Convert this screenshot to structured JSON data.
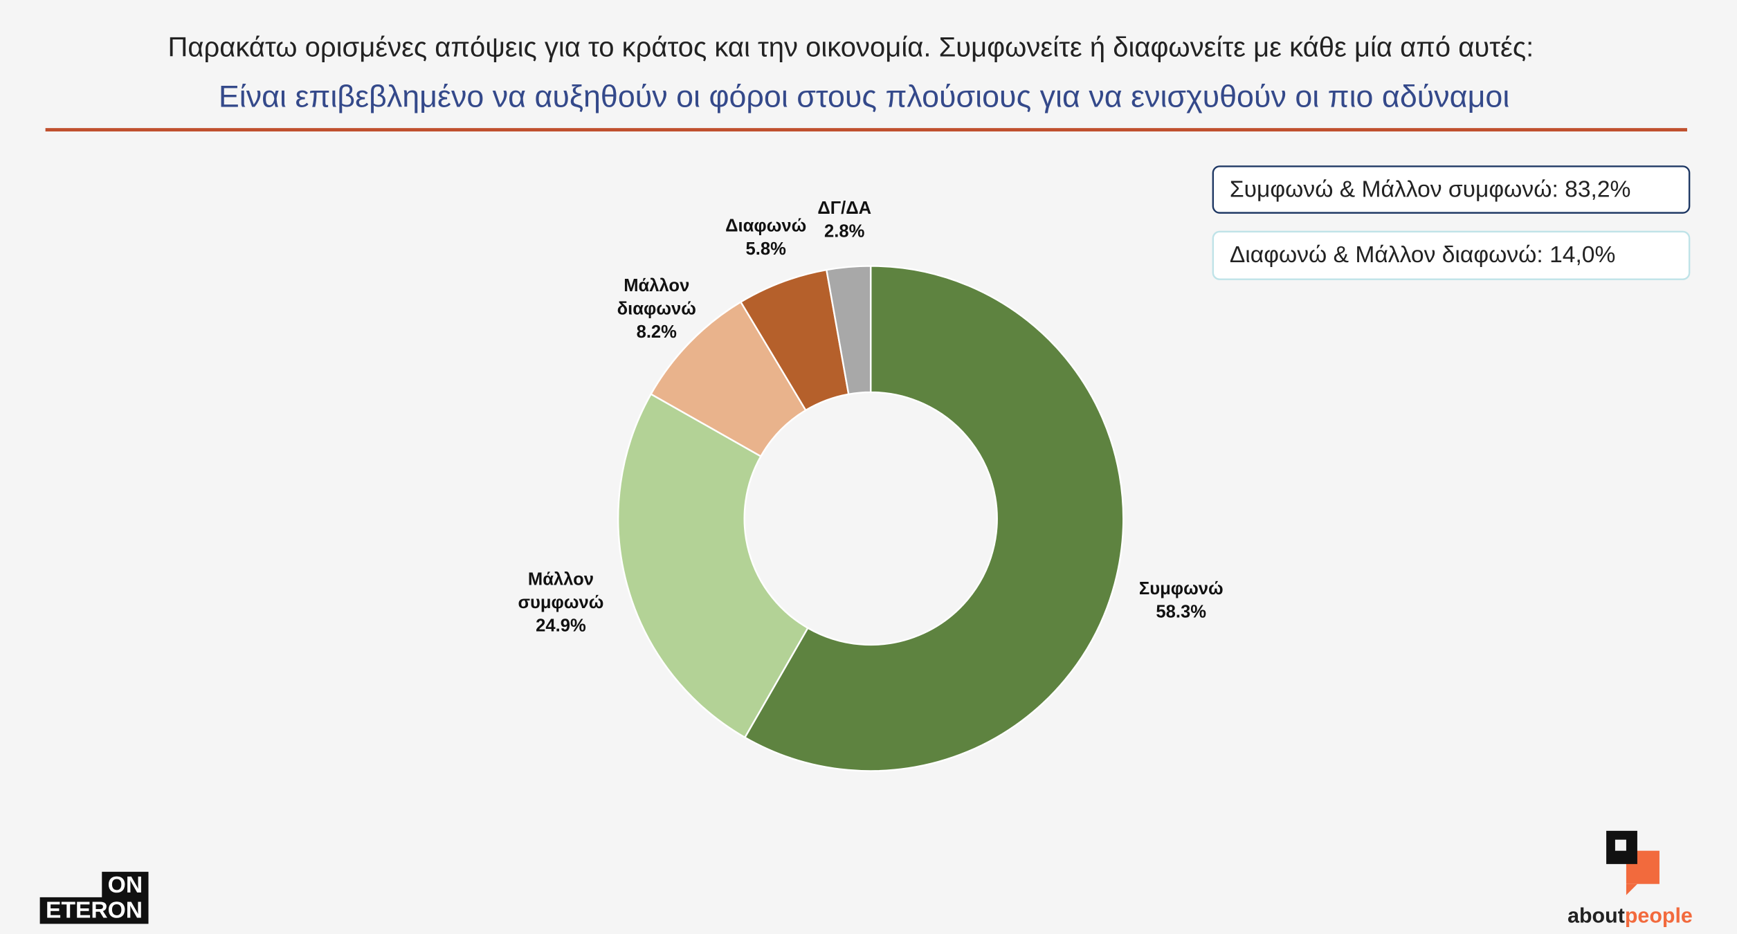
{
  "chart_data": {
    "type": "pie",
    "title": "Παρακάτω ορισμένες απόψεις για το κράτος και την οικονομία. Συμφωνείτε ή διαφωνείτε με κάθε μία από αυτές:",
    "subtitle": "Είναι επιβεβλημένο να αυξηθούν οι φόροι στους πλούσιους για να ενισχυθούν οι πιο αδύναμοι",
    "categories": [
      "Συμφωνώ",
      "Μάλλον συμφωνώ",
      "Μάλλον διαφωνώ",
      "Διαφωνώ",
      "ΔΓ/ΔΑ"
    ],
    "values": [
      58.3,
      24.9,
      8.2,
      5.8,
      2.8
    ],
    "value_labels": [
      "58.3%",
      "24.9%",
      "8.2%",
      "5.8%",
      "2.8%"
    ],
    "colors": [
      "#5e8340",
      "#b3d296",
      "#e9b38c",
      "#b5602b",
      "#a8a8a8"
    ],
    "annotations": [
      "Συμφωνώ & Μάλλον συμφωνώ: 83,2%",
      "Διαφωνώ & Μάλλον διαφωνώ: 14,0%"
    ]
  },
  "logos": {
    "left": [
      "ON",
      "ETERON"
    ],
    "right": [
      "about",
      "people"
    ]
  }
}
